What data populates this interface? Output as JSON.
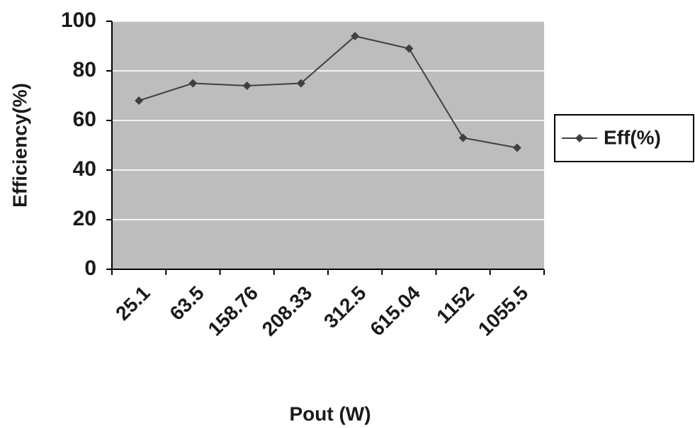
{
  "chart_data": {
    "type": "line",
    "x_label": "Pout (W)",
    "y_label": "Efficiency(%)",
    "categories": [
      "25.1",
      "63.5",
      "158.76",
      "208.33",
      "312.5",
      "615.04",
      "1152",
      "1055.5"
    ],
    "series": [
      {
        "name": "Eff(%)",
        "color": "#404040",
        "values": [
          68,
          75,
          74,
          75,
          94,
          89,
          53,
          49
        ]
      }
    ],
    "ylim": [
      0,
      100
    ],
    "yticks": [
      0,
      20,
      40,
      60,
      80,
      100
    ],
    "grid": true,
    "legend": "right"
  }
}
